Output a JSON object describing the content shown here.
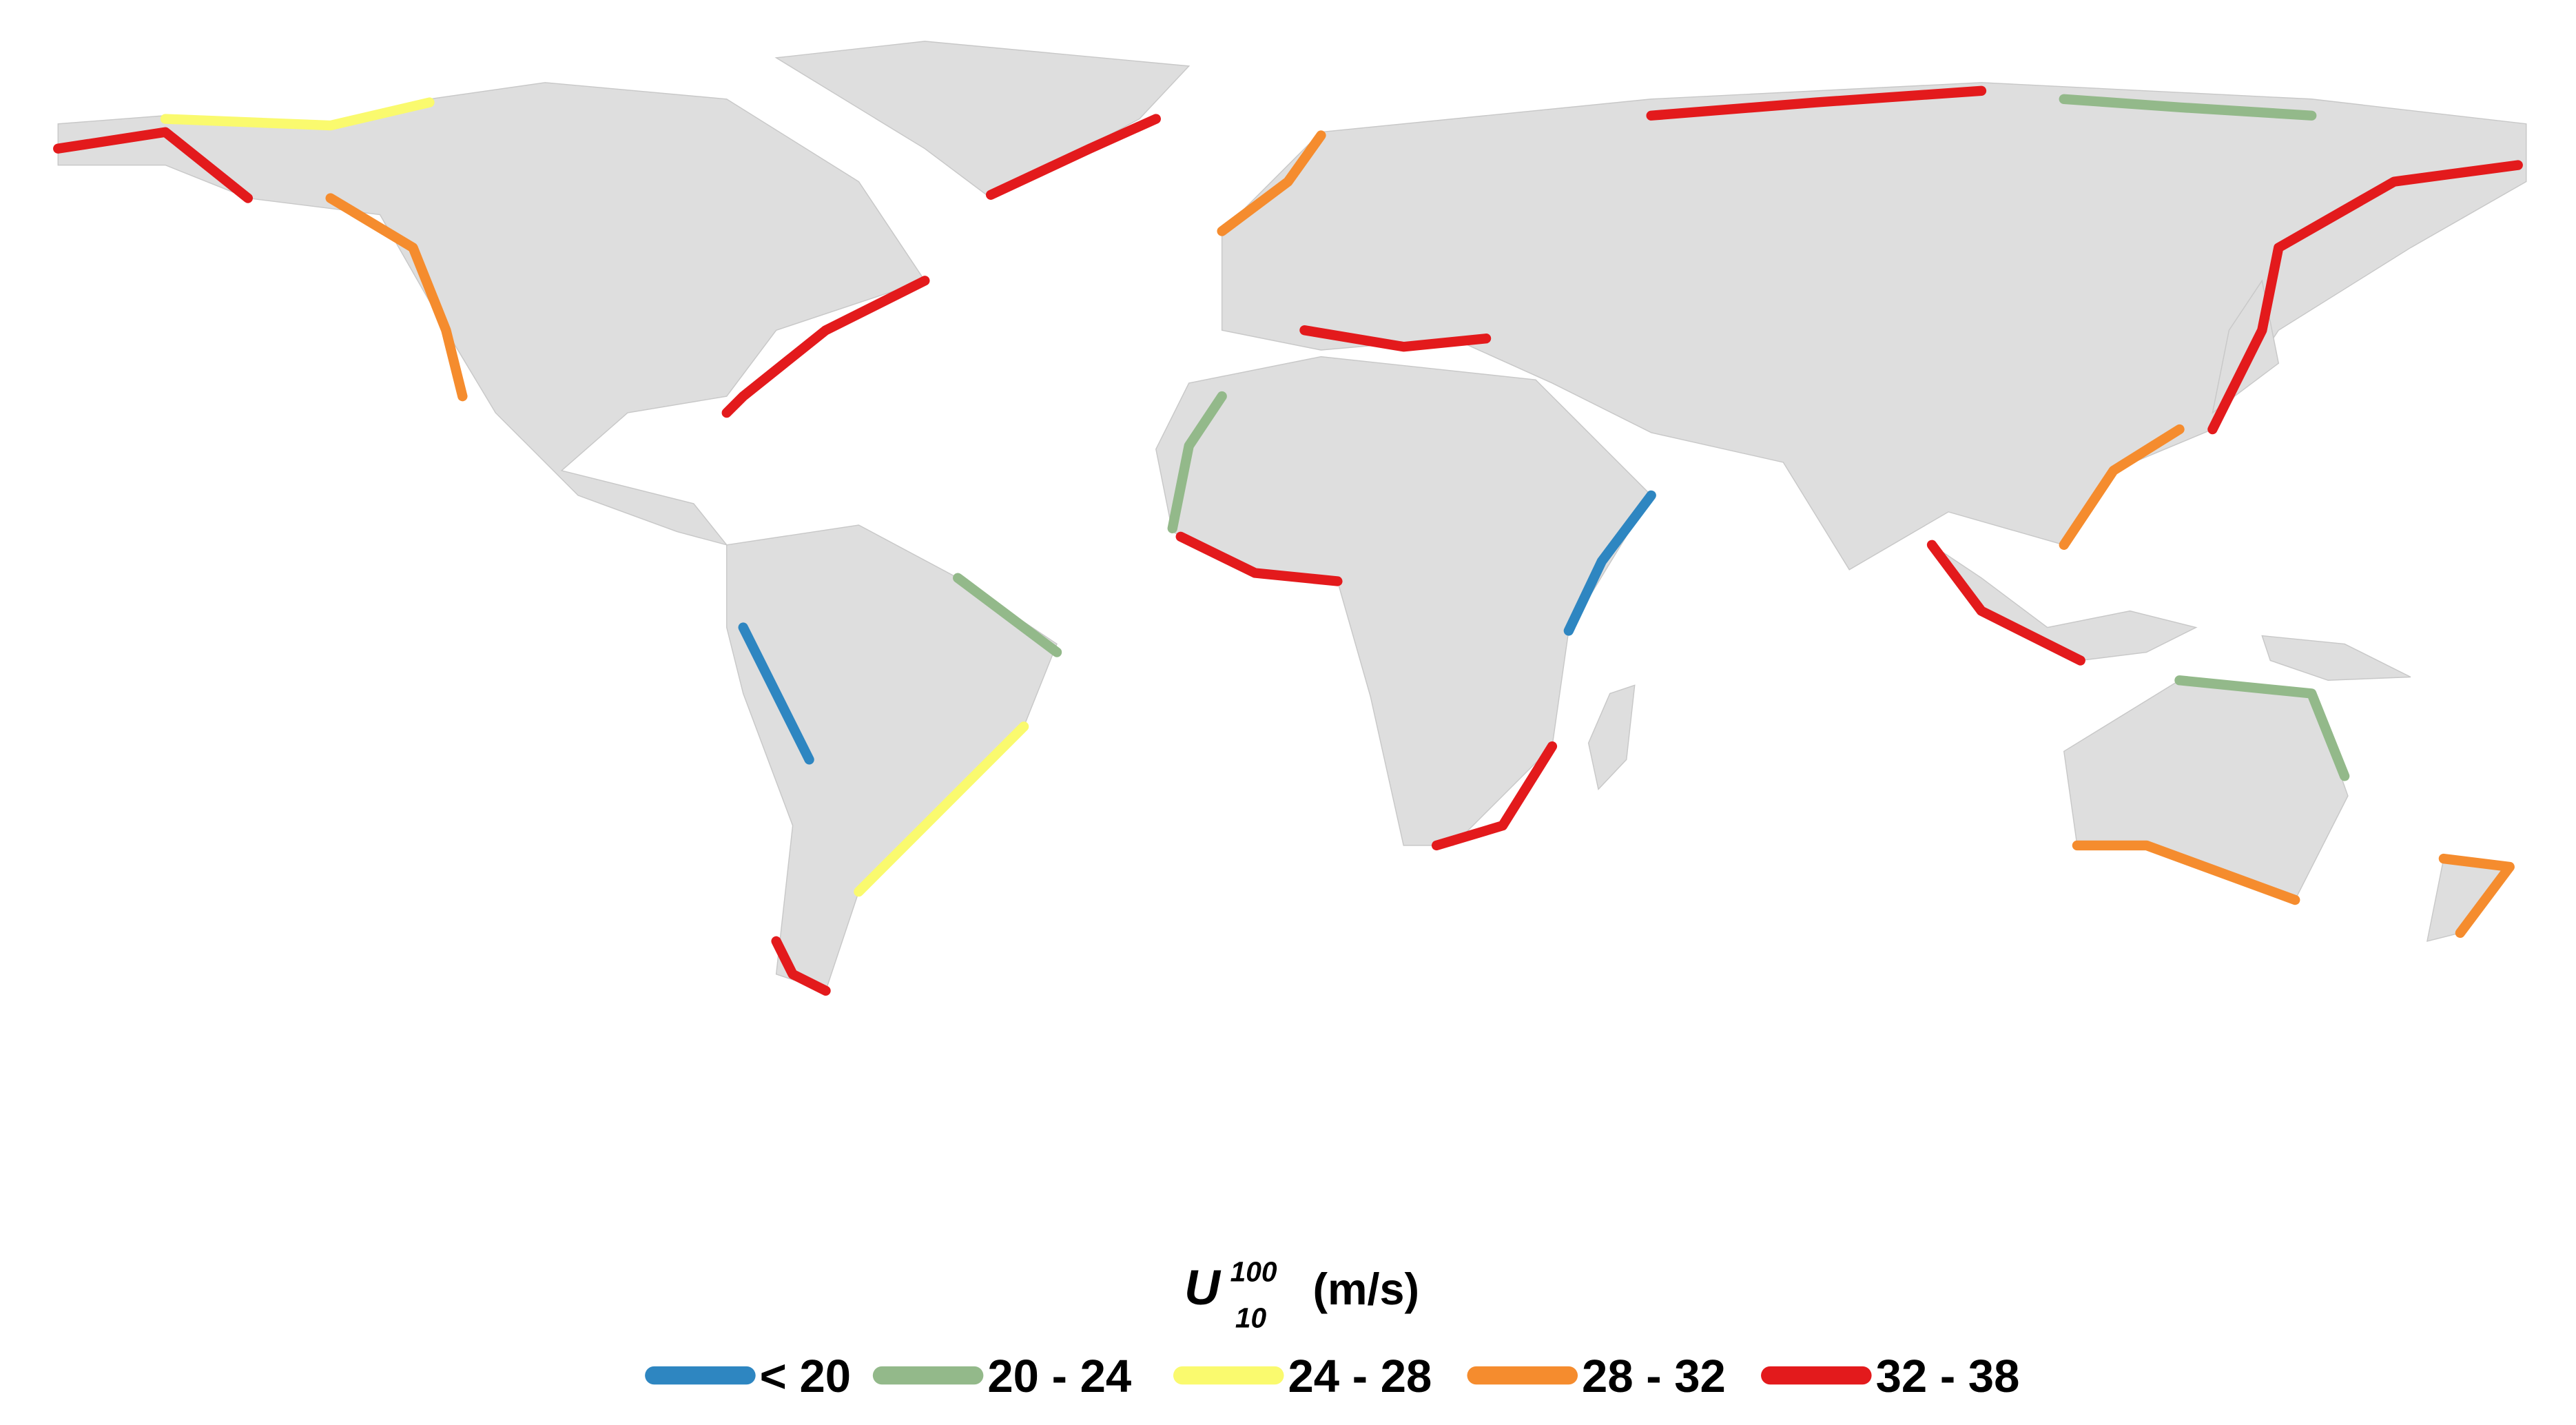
{
  "legend": {
    "title": "U",
    "superscript": "100",
    "subscript": "10",
    "unit": "(m/s)",
    "items": [
      {
        "label": "< 20",
        "color": "#2e86c1"
      },
      {
        "label": "20 - 24",
        "color": "#93b98a"
      },
      {
        "label": "24 - 28",
        "color": "#fafa6e"
      },
      {
        "label": "28 - 32",
        "color": "#f58c2e"
      },
      {
        "label": "32 - 38",
        "color": "#e31a1c"
      }
    ]
  }
}
